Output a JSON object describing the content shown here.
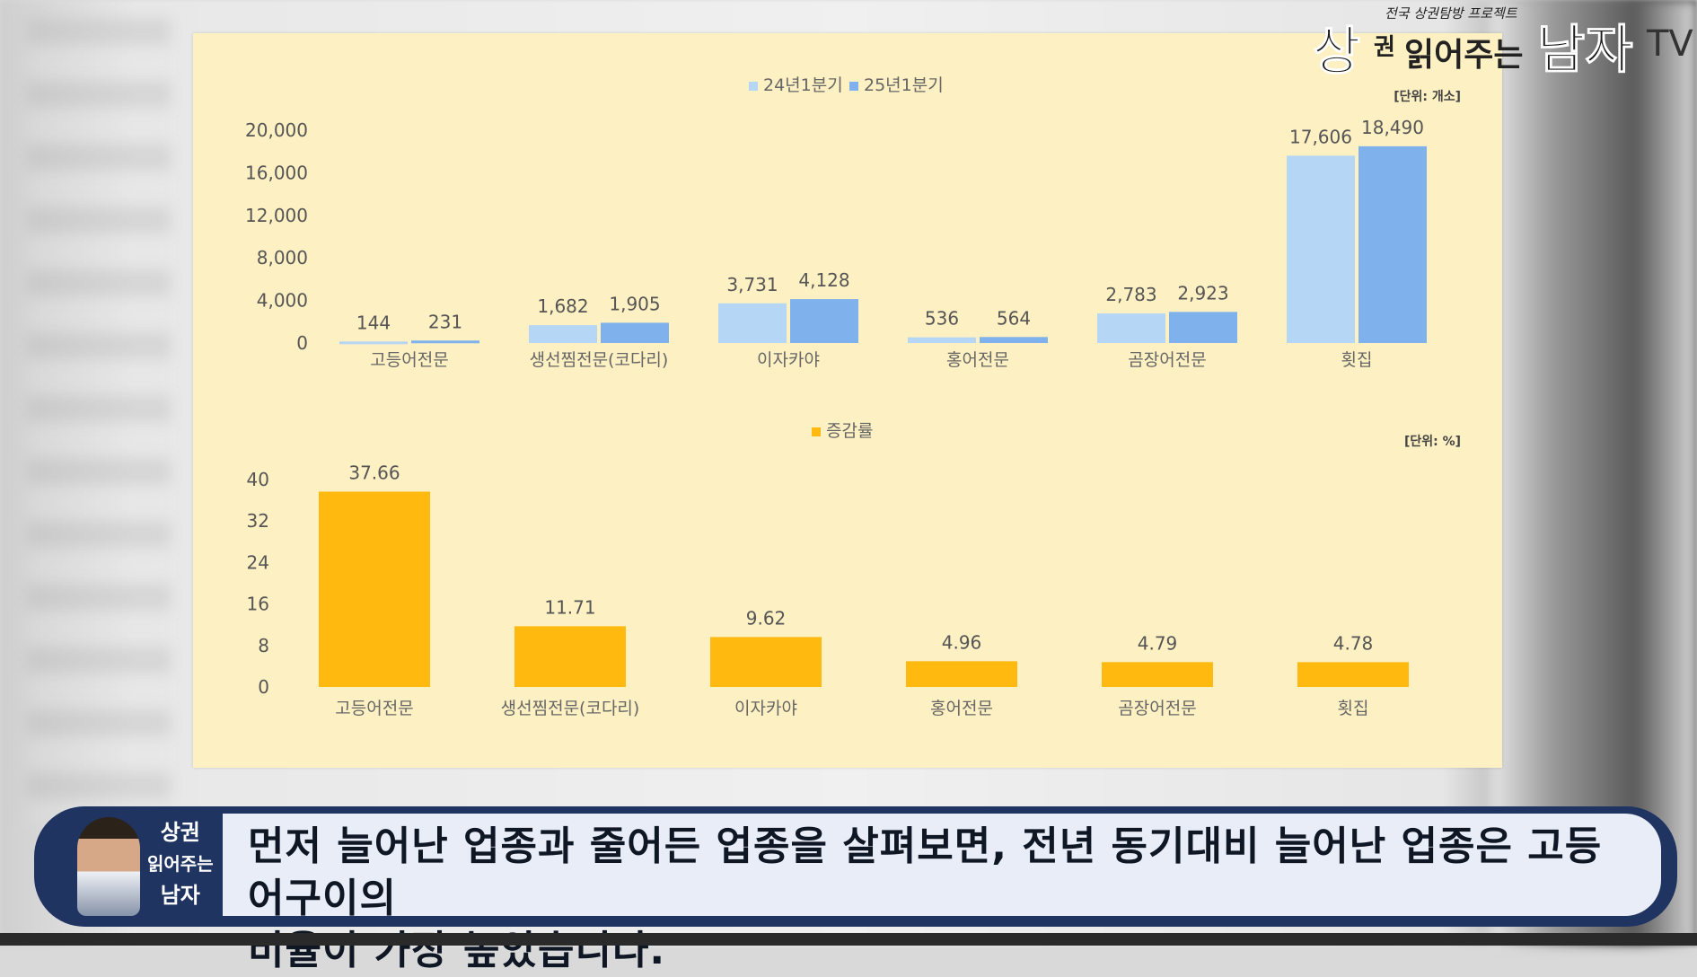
{
  "chart_data": [
    {
      "type": "bar",
      "unit_label": "[단위: 개소]",
      "categories": [
        "고등어전문",
        "생선찜전문(코다리)",
        "이자카야",
        "홍어전문",
        "곰장어전문",
        "횟집"
      ],
      "series": [
        {
          "name": "24년1분기",
          "values": [
            144,
            1682,
            3731,
            536,
            2783,
            17606
          ],
          "labels": [
            "144",
            "1,682",
            "3,731",
            "536",
            "2,783",
            "17,606"
          ],
          "color": "#b6d6f6"
        },
        {
          "name": "25년1분기",
          "values": [
            231,
            1905,
            4128,
            564,
            2923,
            18490
          ],
          "labels": [
            "231",
            "1,905",
            "4,128",
            "564",
            "2,923",
            "18,490"
          ],
          "color": "#7fb1ec"
        }
      ],
      "yticks": [
        "20,000",
        "16,000",
        "12,000",
        "8,000",
        "4,000",
        "0"
      ],
      "ylim": [
        0,
        20000
      ],
      "legend_position": "top-center",
      "grid": false
    },
    {
      "type": "bar",
      "unit_label": "[단위: %]",
      "categories": [
        "고등어전문",
        "생선찜전문(코다리)",
        "이자카야",
        "홍어전문",
        "곰장어전문",
        "횟집"
      ],
      "series": [
        {
          "name": "증감률",
          "values": [
            37.66,
            11.71,
            9.62,
            4.96,
            4.79,
            4.78
          ],
          "labels": [
            "37.66",
            "11.71",
            "9.62",
            "4.96",
            "4.79",
            "4.78"
          ],
          "color": "#ffb90f"
        }
      ],
      "yticks": [
        "40",
        "32",
        "24",
        "16",
        "8",
        "0"
      ],
      "ylim": [
        0,
        40
      ],
      "legend_position": "top-center",
      "grid": false
    }
  ],
  "logo": {
    "tagline": "전국 상권탐방 프로젝트",
    "main_a": "상",
    "main_small": "권",
    "main_mid": "읽어주는",
    "main_end": "남자",
    "tv": "TV"
  },
  "subtitle": {
    "badge_line1": "상권",
    "badge_line2": "읽어주는",
    "badge_line3": "남자",
    "line1": "먼저 늘어난 업종과 줄어든 업종을 살펴보면, 전년 동기대비 늘어난 업종은 고등어구이의",
    "line2": "비율이 가장 높았습니다."
  }
}
